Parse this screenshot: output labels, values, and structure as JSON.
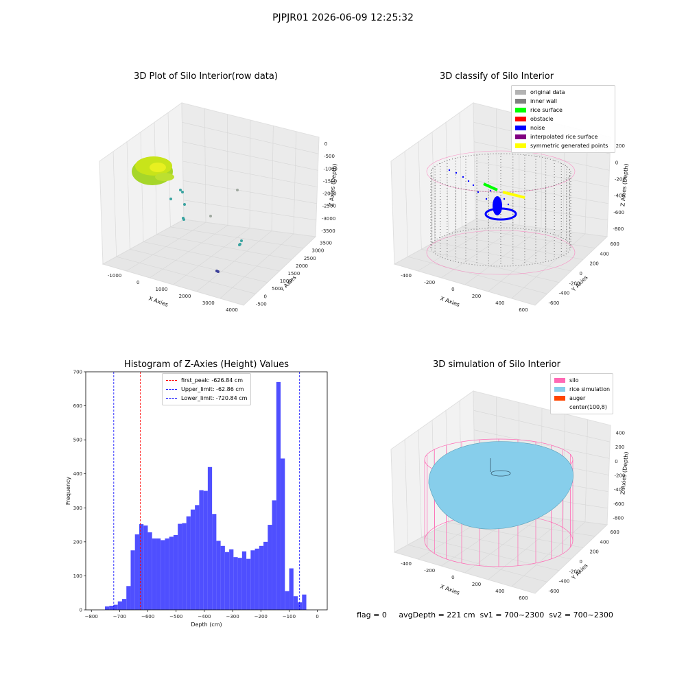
{
  "suptitle": "PJPJR01 2026-06-09 12:25:32",
  "footer": "flag = 0     avgDepth = 221 cm  sv1 = 700~2300  sv2 = 700~2300",
  "colors": {
    "raw_surface": "#c8e41a",
    "raw_cluster": "#3aa3a0",
    "raw_dark": "#3b3f99",
    "wire": "#ff69b4",
    "inner_wall": "#808080",
    "noise": "#0000ff",
    "rice_surface": "#00ff00",
    "symmetric": "#ffff00",
    "rice_sim": "#87ceeb",
    "hist_bar": "#4f4fff",
    "peak_line": "#ff0000",
    "limit_line": "#0000ff"
  },
  "panels": {
    "raw": {
      "title": "3D Plot of Silo Interior(row data)",
      "xlabel": "X Axies",
      "ylabel": "Y Axies",
      "zlabel": "Z Axies (Depth)",
      "xticks": [
        "-1000",
        "0",
        "1000",
        "2000",
        "3000",
        "4000"
      ],
      "yticks": [
        "-500",
        "0",
        "500",
        "1000",
        "1500",
        "2000",
        "2500",
        "3000",
        "3500"
      ],
      "zticks": [
        "0",
        "-500",
        "-1000",
        "-1500",
        "-2000",
        "-2500",
        "-3000",
        "-3500"
      ]
    },
    "classify": {
      "title": "3D classify of Silo Interior",
      "xlabel": "X Axies",
      "ylabel": "Y Axies",
      "zlabel": "Z Axies (Depth)",
      "xticks": [
        "-400",
        "-200",
        "0",
        "200",
        "400",
        "600"
      ],
      "yticks": [
        "-600",
        "-400",
        "-200",
        "0",
        "200",
        "400",
        "600"
      ],
      "zticks": [
        "200",
        "0",
        "-200",
        "-400",
        "-600",
        "-800"
      ],
      "legend": [
        {
          "label": "original data",
          "color": "#b3b3b3"
        },
        {
          "label": "inner wall",
          "color": "#808080"
        },
        {
          "label": "rice surface",
          "color": "#00ff00"
        },
        {
          "label": "obstacle",
          "color": "#ff0000"
        },
        {
          "label": "noise",
          "color": "#0000ff"
        },
        {
          "label": "interpolated rice surface",
          "color": "#800080"
        },
        {
          "label": "symmetric generated points",
          "color": "#ffff00"
        }
      ]
    },
    "simulation": {
      "title": "3D simulation of Silo Interior",
      "xlabel": "X Axies",
      "ylabel": "Y Axies",
      "zlabel": "Z Axies (Depth)",
      "xticks": [
        "-400",
        "-200",
        "0",
        "200",
        "400",
        "600"
      ],
      "yticks": [
        "-600",
        "-400",
        "-200",
        "0",
        "200",
        "400",
        "600"
      ],
      "zticks": [
        "400",
        "200",
        "0",
        "-200",
        "-400",
        "-600",
        "-800"
      ],
      "legend": [
        {
          "label": "silo",
          "color": "#ff69b4"
        },
        {
          "label": "rice simulation",
          "color": "#87ceeb"
        },
        {
          "label": "auger",
          "color": "#ff4500"
        },
        {
          "label": "center(100,8)",
          "color": ""
        }
      ]
    }
  },
  "chart_data": {
    "type": "bar",
    "title": "Histogram of Z-Axies (Height) Values",
    "xlabel": "Depth (cm)",
    "ylabel": "Frequency",
    "xlim": [
      -820,
      35
    ],
    "ylim": [
      0,
      700
    ],
    "xticks": [
      -800,
      -700,
      -600,
      -500,
      -400,
      -300,
      -200,
      -100,
      0
    ],
    "yticks": [
      0,
      100,
      200,
      300,
      400,
      500,
      600,
      700
    ],
    "bin_start": -752,
    "bin_width": 15.17,
    "values": [
      10,
      12,
      15,
      25,
      32,
      70,
      175,
      222,
      252,
      248,
      228,
      210,
      210,
      205,
      210,
      215,
      220,
      253,
      255,
      275,
      295,
      308,
      352,
      350,
      420,
      282,
      203,
      188,
      170,
      178,
      155,
      153,
      172,
      150,
      175,
      180,
      188,
      200,
      250,
      322,
      670,
      445,
      55,
      122,
      40,
      22,
      45
    ],
    "vlines": [
      {
        "label": "first_peak: -626.84 cm",
        "x": -626.84,
        "color": "#ff0000"
      },
      {
        "label": "Upper_limit: -62.86 cm",
        "x": -62.86,
        "color": "#0000ff"
      },
      {
        "label": "Lower_limit: -720.84 cm",
        "x": -720.84,
        "color": "#0000ff"
      }
    ],
    "legend_position": "top-center"
  }
}
